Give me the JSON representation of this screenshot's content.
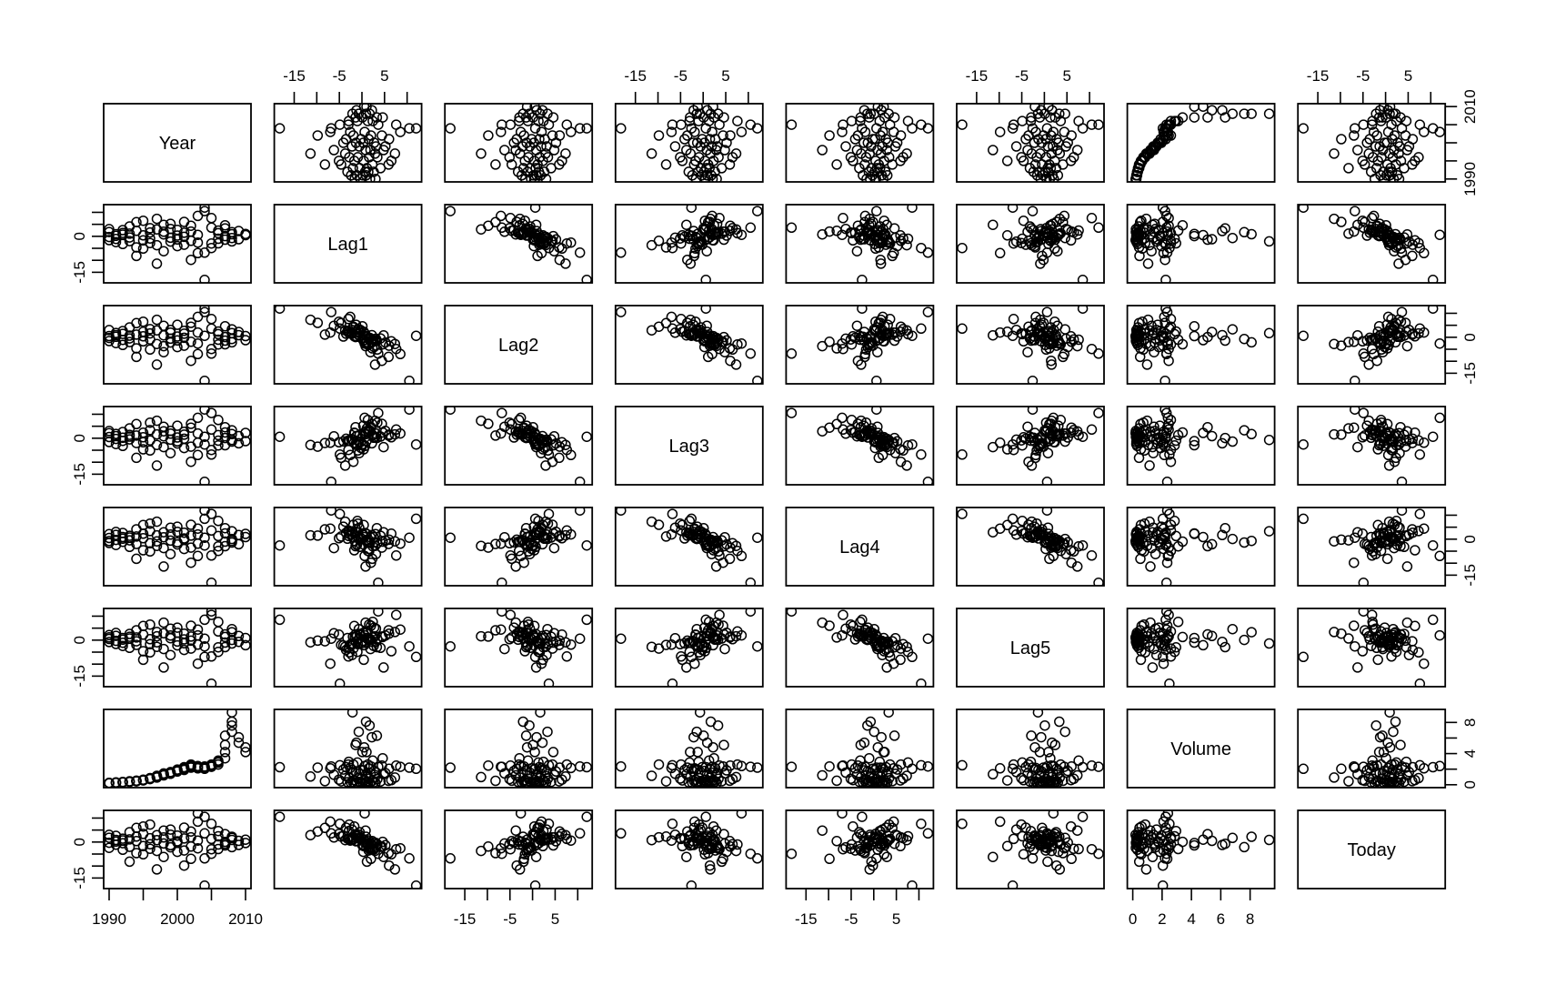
{
  "chart_data": {
    "type": "scatter-matrix",
    "variables": [
      "Year",
      "Lag1",
      "Lag2",
      "Lag3",
      "Lag4",
      "Lag5",
      "Volume",
      "Today"
    ],
    "grid": false,
    "point_style": "open-circle",
    "colors": {
      "points": "#000000",
      "axes": "#000000",
      "background": "#ffffff"
    },
    "axes": {
      "Year": {
        "range": [
          1990,
          2010
        ],
        "ticks": [
          1990,
          1995,
          2000,
          2005,
          2010
        ],
        "tick_labels": [
          "1990",
          "2000",
          "2010"
        ],
        "tick_label_values": [
          1990,
          2000,
          2010
        ],
        "side_tick_labels": [
          "1990",
          "2010"
        ],
        "side_tick_label_values": [
          1990,
          2010
        ]
      },
      "Lag1": {
        "range": [
          -18.2,
          12.0
        ],
        "ticks": [
          -15,
          -10,
          -5,
          0,
          5,
          10
        ],
        "tick_labels": [
          "-15",
          "-5",
          "5"
        ],
        "tick_label_values": [
          -15,
          -5,
          5
        ],
        "side_tick_labels": [
          "-15",
          "0"
        ],
        "side_tick_label_values": [
          -15,
          0
        ]
      },
      "Lag2": {
        "range": [
          -18.2,
          12.0
        ],
        "ticks": [
          -15,
          -10,
          -5,
          0,
          5,
          10
        ],
        "tick_labels": [
          "-15",
          "-5",
          "5"
        ],
        "tick_label_values": [
          -15,
          -5,
          5
        ],
        "side_tick_labels": [
          "-15",
          "0"
        ],
        "side_tick_label_values": [
          -15,
          0
        ]
      },
      "Lag3": {
        "range": [
          -18.2,
          12.0
        ],
        "ticks": [
          -15,
          -10,
          -5,
          0,
          5,
          10
        ],
        "tick_labels": [
          "-15",
          "-5",
          "5"
        ],
        "tick_label_values": [
          -15,
          -5,
          5
        ],
        "side_tick_labels": [
          "-15",
          "0"
        ],
        "side_tick_label_values": [
          -15,
          0
        ]
      },
      "Lag4": {
        "range": [
          -18.2,
          12.0
        ],
        "ticks": [
          -15,
          -10,
          -5,
          0,
          5,
          10
        ],
        "tick_labels": [
          "-15",
          "-5",
          "5"
        ],
        "tick_label_values": [
          -15,
          -5,
          5
        ],
        "side_tick_labels": [
          "-15",
          "0"
        ],
        "side_tick_label_values": [
          -15,
          0
        ]
      },
      "Lag5": {
        "range": [
          -18.2,
          12.0
        ],
        "ticks": [
          -15,
          -10,
          -5,
          0,
          5,
          10
        ],
        "tick_labels": [
          "-15",
          "-5",
          "5"
        ],
        "tick_label_values": [
          -15,
          -5,
          5
        ],
        "side_tick_labels": [
          "-15",
          "0"
        ],
        "side_tick_label_values": [
          -15,
          0
        ]
      },
      "Volume": {
        "range": [
          0.0,
          9.3
        ],
        "ticks": [
          0,
          2,
          4,
          6,
          8
        ],
        "tick_labels": [
          "0",
          "2",
          "4",
          "6",
          "8"
        ],
        "tick_label_values": [
          0,
          2,
          4,
          6,
          8
        ],
        "side_tick_labels": [
          "0",
          "4",
          "8"
        ],
        "side_tick_label_values": [
          0,
          4,
          8
        ]
      },
      "Today": {
        "range": [
          -18.2,
          12.0
        ],
        "ticks": [
          -15,
          -10,
          -5,
          0,
          5,
          10
        ],
        "tick_labels": [
          "-15",
          "-5",
          "5"
        ],
        "tick_label_values": [
          -15,
          -5,
          5
        ],
        "side_tick_labels": [
          "-15",
          "0"
        ],
        "side_tick_label_values": [
          -15,
          0
        ]
      }
    },
    "data": {
      "Year": [
        1990,
        1990,
        1990,
        1990,
        1991,
        1991,
        1991,
        1991,
        1992,
        1992,
        1992,
        1992,
        1993,
        1993,
        1993,
        1993,
        1994,
        1994,
        1994,
        1994,
        1995,
        1995,
        1995,
        1995,
        1996,
        1996,
        1996,
        1996,
        1997,
        1997,
        1997,
        1997,
        1998,
        1998,
        1998,
        1998,
        1999,
        1999,
        1999,
        1999,
        2000,
        2000,
        2000,
        2000,
        2001,
        2001,
        2001,
        2001,
        2002,
        2002,
        2002,
        2002,
        2003,
        2003,
        2003,
        2003,
        2004,
        2004,
        2004,
        2004,
        2005,
        2005,
        2005,
        2005,
        2006,
        2006,
        2006,
        2006,
        2007,
        2007,
        2007,
        2007,
        2008,
        2008,
        2008,
        2008,
        2009,
        2009,
        2010,
        2010
      ],
      "Lag5": [
        1.2,
        -0.8,
        2.1,
        0.5,
        -1.6,
        3.0,
        -0.3,
        1.8,
        -2.4,
        0.9,
        0.2,
        -1.1,
        2.6,
        -3.2,
        1.4,
        0.7,
        -0.5,
        4.1,
        -2.0,
        1.1,
        -8.2,
        5.9,
        -4.6,
        2.3,
        0.4,
        -1.7,
        6.5,
        -5.1,
        3.4,
        -0.9,
        1.6,
        -2.8,
        7.3,
        -11.4,
        2.9,
        -3.7,
        0.8,
        4.8,
        -6.2,
        1.9,
        -0.6,
        3.1,
        -2.2,
        5.2,
        -1.3,
        0.3,
        -4.1,
        2.7,
        -0.2,
        1.5,
        -3.5,
        6.0,
        -9.8,
        4.4,
        -1.9,
        2.0,
        -7.0,
        8.5,
        -2.6,
        0.6,
        12.0,
        -18.2,
        10.5,
        -6.8,
        3.6,
        -4.9,
        7.6,
        -3.0,
        1.3,
        -1.0,
        2.4,
        -2.9,
        4.6,
        0.1,
        -1.4,
        3.3,
        -0.7,
        1.7,
        -2.1,
        0.9
      ],
      "Lag4": [
        -0.8,
        2.1,
        0.5,
        -1.6,
        3.0,
        -0.3,
        1.8,
        -2.4,
        0.9,
        0.2,
        -1.1,
        2.6,
        -3.2,
        1.4,
        0.7,
        -0.5,
        4.1,
        -2.0,
        1.1,
        -8.2,
        5.9,
        -4.6,
        2.3,
        0.4,
        -1.7,
        6.5,
        -5.1,
        3.4,
        -0.9,
        1.6,
        -2.8,
        7.3,
        -11.4,
        2.9,
        -3.7,
        0.8,
        4.8,
        -6.2,
        1.9,
        -0.6,
        3.1,
        -2.2,
        5.2,
        -1.3,
        0.3,
        -4.1,
        2.7,
        -0.2,
        1.5,
        -3.5,
        6.0,
        -9.8,
        4.4,
        -1.9,
        2.0,
        -7.0,
        8.5,
        -2.6,
        0.6,
        12.0,
        -18.2,
        10.5,
        -6.8,
        3.6,
        -4.9,
        7.6,
        -3.0,
        1.3,
        -1.0,
        2.4,
        -2.9,
        4.6,
        0.1,
        -1.4,
        3.3,
        -0.7,
        1.7,
        -2.1,
        0.9,
        2.2
      ],
      "Lag3": [
        2.1,
        0.5,
        -1.6,
        3.0,
        -0.3,
        1.8,
        -2.4,
        0.9,
        0.2,
        -1.1,
        2.6,
        -3.2,
        1.4,
        0.7,
        -0.5,
        4.1,
        -2.0,
        1.1,
        -8.2,
        5.9,
        -4.6,
        2.3,
        0.4,
        -1.7,
        6.5,
        -5.1,
        3.4,
        -0.9,
        1.6,
        -2.8,
        7.3,
        -11.4,
        2.9,
        -3.7,
        0.8,
        4.8,
        -6.2,
        1.9,
        -0.6,
        3.1,
        -2.2,
        5.2,
        -1.3,
        0.3,
        -4.1,
        2.7,
        -0.2,
        1.5,
        -3.5,
        6.0,
        -9.8,
        4.4,
        -1.9,
        2.0,
        -7.0,
        8.5,
        -2.6,
        0.6,
        12.0,
        -18.2,
        10.5,
        -6.8,
        3.6,
        -4.9,
        7.6,
        -3.0,
        1.3,
        -1.0,
        2.4,
        -2.9,
        4.6,
        0.1,
        -1.4,
        3.3,
        -0.7,
        1.7,
        -2.1,
        0.9,
        2.2,
        -1.2
      ],
      "Lag2": [
        0.5,
        -1.6,
        3.0,
        -0.3,
        1.8,
        -2.4,
        0.9,
        0.2,
        -1.1,
        2.6,
        -3.2,
        1.4,
        0.7,
        -0.5,
        4.1,
        -2.0,
        1.1,
        -8.2,
        5.9,
        -4.6,
        2.3,
        0.4,
        -1.7,
        6.5,
        -5.1,
        3.4,
        -0.9,
        1.6,
        -2.8,
        7.3,
        -11.4,
        2.9,
        -3.7,
        0.8,
        4.8,
        -6.2,
        1.9,
        -0.6,
        3.1,
        -2.2,
        5.2,
        -1.3,
        0.3,
        -4.1,
        2.7,
        -0.2,
        1.5,
        -3.5,
        6.0,
        -9.8,
        4.4,
        -1.9,
        2.0,
        -7.0,
        8.5,
        -2.6,
        0.6,
        12.0,
        -18.2,
        10.5,
        -6.8,
        3.6,
        -4.9,
        7.6,
        -3.0,
        1.3,
        -1.0,
        2.4,
        -2.9,
        4.6,
        0.1,
        -1.4,
        3.3,
        -0.7,
        1.7,
        -2.1,
        0.9,
        2.2,
        -1.2,
        0.5
      ],
      "Lag1": [
        -1.6,
        3.0,
        -0.3,
        1.8,
        -2.4,
        0.9,
        0.2,
        -1.1,
        2.6,
        -3.2,
        1.4,
        0.7,
        -0.5,
        4.1,
        -2.0,
        1.1,
        -8.2,
        5.9,
        -4.6,
        2.3,
        0.4,
        -1.7,
        6.5,
        -5.1,
        3.4,
        -0.9,
        1.6,
        -2.8,
        7.3,
        -11.4,
        2.9,
        -3.7,
        0.8,
        4.8,
        -6.2,
        1.9,
        -0.6,
        3.1,
        -2.2,
        5.2,
        -1.3,
        0.3,
        -4.1,
        2.7,
        -0.2,
        1.5,
        -3.5,
        6.0,
        -9.8,
        4.4,
        -1.9,
        2.0,
        -7.0,
        8.5,
        -2.6,
        0.6,
        12.0,
        -18.2,
        10.5,
        -6.8,
        3.6,
        -4.9,
        7.6,
        -3.0,
        1.3,
        -1.0,
        2.4,
        -2.9,
        4.6,
        0.1,
        -1.4,
        3.3,
        -0.7,
        1.7,
        -2.1,
        0.9,
        2.2,
        -1.2,
        0.5,
        1.0
      ],
      "Today": [
        3.0,
        -0.3,
        1.8,
        -2.4,
        0.9,
        0.2,
        -1.1,
        2.6,
        -3.2,
        1.4,
        0.7,
        -0.5,
        4.1,
        -2.0,
        1.1,
        -8.2,
        5.9,
        -4.6,
        2.3,
        0.4,
        -1.7,
        6.5,
        -5.1,
        3.4,
        -0.9,
        1.6,
        -2.8,
        7.3,
        -11.4,
        2.9,
        -3.7,
        0.8,
        4.8,
        -6.2,
        1.9,
        -0.6,
        3.1,
        -2.2,
        5.2,
        -1.3,
        0.3,
        -4.1,
        2.7,
        -0.2,
        1.5,
        -3.5,
        6.0,
        -9.8,
        4.4,
        -1.9,
        2.0,
        -7.0,
        8.5,
        -2.6,
        0.6,
        12.0,
        -18.2,
        10.5,
        -6.8,
        3.6,
        -4.9,
        7.6,
        -3.0,
        1.3,
        -1.0,
        2.4,
        -2.9,
        4.6,
        0.1,
        -1.4,
        3.3,
        -0.7,
        1.7,
        -2.1,
        0.9,
        2.2,
        -1.2,
        0.5,
        1.0,
        -0.4
      ],
      "Volume": [
        0.19,
        0.22,
        0.25,
        0.21,
        0.26,
        0.28,
        0.24,
        0.3,
        0.31,
        0.33,
        0.35,
        0.3,
        0.38,
        0.41,
        0.36,
        0.44,
        0.46,
        0.5,
        0.43,
        0.52,
        0.55,
        0.6,
        0.58,
        0.65,
        0.72,
        0.8,
        0.76,
        0.85,
        0.92,
        1.05,
        0.98,
        1.15,
        1.2,
        1.35,
        1.28,
        1.45,
        1.4,
        1.55,
        1.62,
        1.5,
        1.7,
        1.85,
        1.95,
        1.78,
        1.9,
        2.1,
        2.25,
        2.05,
        2.2,
        2.45,
        2.6,
        2.35,
        2.1,
        2.3,
        2.15,
        2.4,
        2.05,
        2.25,
        2.2,
        2.35,
        2.3,
        2.5,
        2.45,
        2.6,
        2.6,
        2.85,
        3.1,
        2.95,
        3.4,
        4.2,
        5.1,
        6.3,
        6.8,
        7.6,
        9.3,
        8.1,
        6.1,
        5.4,
        4.8,
        4.2
      ]
    }
  }
}
